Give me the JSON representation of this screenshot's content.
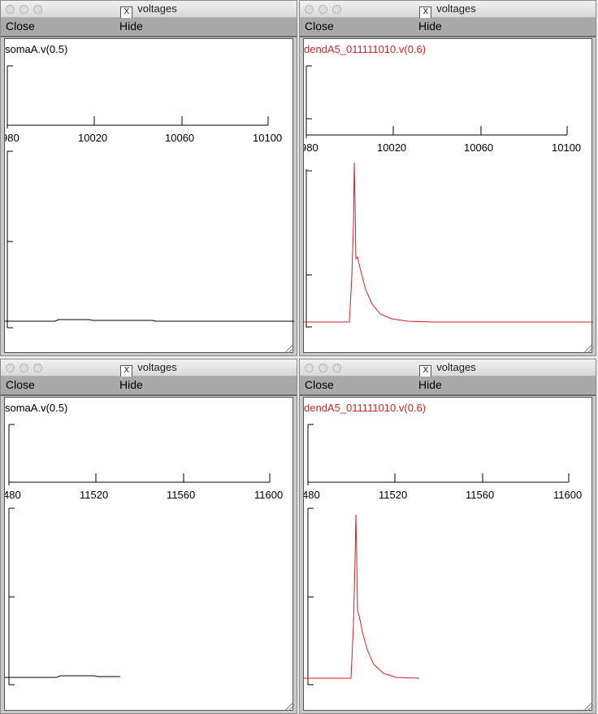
{
  "windows": [
    {
      "title": "voltages",
      "close_label": "Close",
      "hide_label": "Hide",
      "trace_label": "somaA.v(0.5)",
      "trace_color": "#000000",
      "xticks": [
        "980",
        "10020",
        "10060",
        "10100"
      ]
    },
    {
      "title": "voltages",
      "close_label": "Close",
      "hide_label": "Hide",
      "trace_label": "dendA5_011111010.v(0.6)",
      "trace_color": "#cc2222",
      "xticks": [
        "980",
        "10020",
        "10060",
        "10100"
      ]
    },
    {
      "title": "voltages",
      "close_label": "Close",
      "hide_label": "Hide",
      "trace_label": "somaA.v(0.5)",
      "trace_color": "#000000",
      "xticks": [
        "480",
        "11520",
        "11560",
        "11600"
      ]
    },
    {
      "title": "voltages",
      "close_label": "Close",
      "hide_label": "Hide",
      "trace_label": "dendA5_011111010.v(0.6)",
      "trace_color": "#cc2222",
      "xticks": [
        "480",
        "11520",
        "11560",
        "11600"
      ]
    }
  ],
  "colors": {
    "menubar": "#a9a9a9",
    "plot_bg": "#ffffff",
    "dend_trace": "#cc2222",
    "soma_trace": "#000000"
  }
}
